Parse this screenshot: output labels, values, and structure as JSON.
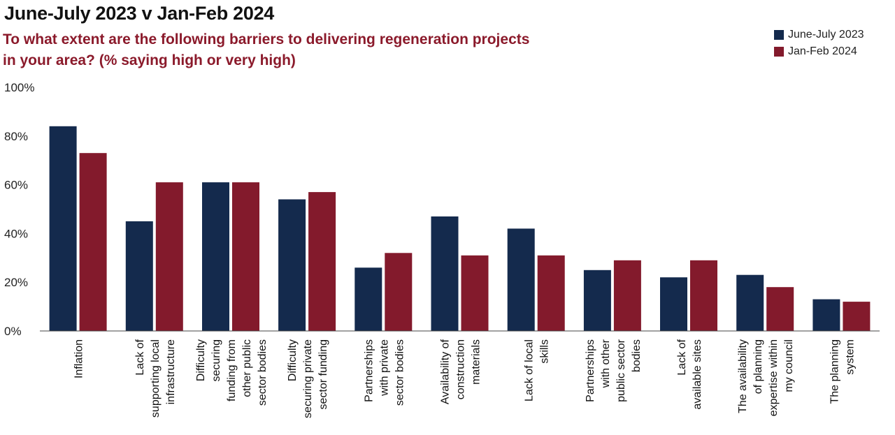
{
  "title": "June-July 2023 v Jan-Feb 2024",
  "subtitle": "To what extent are the following barriers to delivering regeneration projects in your area? (% saying high or very high)",
  "colors": {
    "series_1": "#142a4d",
    "series_2": "#831a2c"
  },
  "chart_data": {
    "type": "bar",
    "title": "June-July 2023 v Jan-Feb 2024",
    "subtitle": "To what extent are the following barriers to delivering regeneration projects in your area? (% saying high or very high)",
    "xlabel": "",
    "ylabel": "",
    "ylim": [
      0,
      100
    ],
    "yticks": [
      "0%",
      "20%",
      "40%",
      "60%",
      "80%",
      "100%"
    ],
    "grid": false,
    "legend_position": "top-right",
    "categories": [
      [
        "Inflation"
      ],
      [
        "Lack of",
        "supporting local",
        "infrastructure"
      ],
      [
        "Difficulty",
        "securing",
        "funding from",
        "other public",
        "sector bodies"
      ],
      [
        "Difficulty",
        "securing private",
        "sector funding"
      ],
      [
        "Partnerships",
        "with private",
        "sector bodies"
      ],
      [
        "Availability of",
        "construction",
        "materials"
      ],
      [
        "Lack of local",
        "skills"
      ],
      [
        "Partnerships",
        "with other",
        "public sector",
        "bodies"
      ],
      [
        "Lack of",
        "available sites"
      ],
      [
        "The availability",
        "of planning",
        "expertise within",
        "my council"
      ],
      [
        "The planning",
        "system"
      ]
    ],
    "series": [
      {
        "name": "June-July 2023",
        "values": [
          84,
          45,
          61,
          54,
          26,
          47,
          42,
          25,
          22,
          23,
          13
        ]
      },
      {
        "name": "Jan-Feb 2024",
        "values": [
          73,
          61,
          61,
          57,
          32,
          31,
          31,
          29,
          29,
          18,
          12
        ]
      }
    ]
  }
}
